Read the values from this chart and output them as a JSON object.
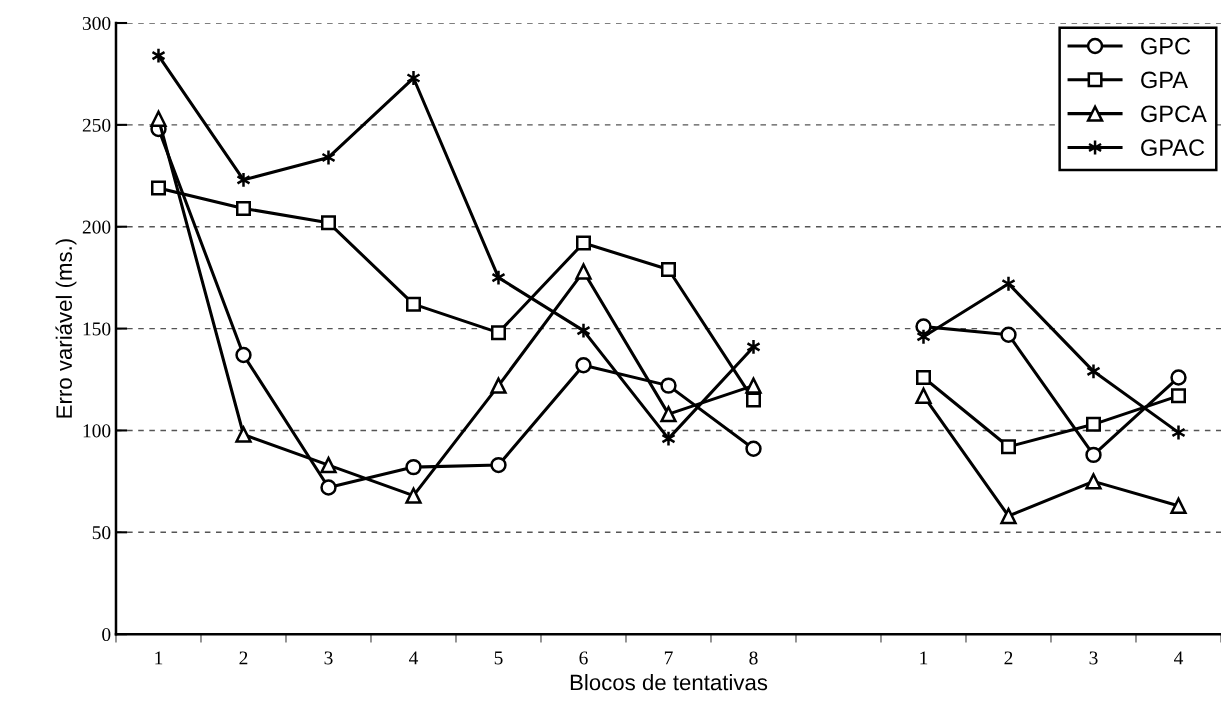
{
  "chart_data": {
    "type": "line",
    "xlabel": "Blocos de tentativas",
    "ylabel": "Erro variável (ms.)",
    "categories": [
      "1",
      "2",
      "3",
      "4",
      "5",
      "6",
      "7",
      "8",
      null,
      "1",
      "2",
      "3",
      "4"
    ],
    "ylim": [
      0,
      300
    ],
    "yticks": [
      0,
      50,
      100,
      150,
      200,
      250,
      300
    ],
    "grid": "y",
    "legend": "top right",
    "series": [
      {
        "name": "GPC",
        "color": "#000000",
        "marker": "circle",
        "values": [
          248,
          137,
          72,
          82,
          83,
          132,
          122,
          91,
          null,
          151,
          147,
          88,
          126
        ]
      },
      {
        "name": "GPA",
        "color": "#000000",
        "marker": "square",
        "values": [
          219,
          209,
          202,
          162,
          148,
          192,
          179,
          115,
          null,
          126,
          92,
          103,
          117
        ]
      },
      {
        "name": "GPCA",
        "color": "#000000",
        "marker": "triangle",
        "values": [
          253,
          98,
          83,
          68,
          122,
          178,
          108,
          122,
          null,
          117,
          58,
          75,
          63
        ]
      },
      {
        "name": "GPAC",
        "color": "#000000",
        "marker": "cross",
        "values": [
          284,
          223,
          234,
          273,
          175,
          149,
          96,
          141,
          null,
          146,
          172,
          129,
          99
        ]
      }
    ]
  }
}
